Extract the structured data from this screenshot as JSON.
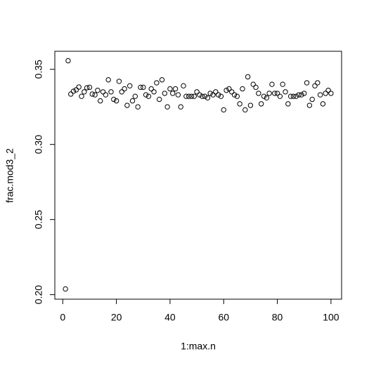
{
  "chart_data": {
    "type": "scatter",
    "x_label": "1:max.n",
    "y_label": "frac.mod3_2",
    "x": [
      1,
      2,
      3,
      4,
      5,
      6,
      7,
      8,
      9,
      10,
      11,
      12,
      13,
      14,
      15,
      16,
      17,
      18,
      19,
      20,
      21,
      22,
      23,
      24,
      25,
      26,
      27,
      28,
      29,
      30,
      31,
      32,
      33,
      34,
      35,
      36,
      37,
      38,
      39,
      40,
      41,
      42,
      43,
      44,
      45,
      46,
      47,
      48,
      49,
      50,
      51,
      52,
      53,
      54,
      55,
      56,
      57,
      58,
      59,
      60,
      61,
      62,
      63,
      64,
      65,
      66,
      67,
      68,
      69,
      70,
      71,
      72,
      73,
      74,
      75,
      76,
      77,
      78,
      79,
      80,
      81,
      82,
      83,
      84,
      85,
      86,
      87,
      88,
      89,
      90,
      91,
      92,
      93,
      94,
      95,
      96,
      97,
      98,
      99,
      100
    ],
    "series": [
      {
        "color": "#000000",
        "values": [
          0.2038,
          0.3557,
          0.3335,
          0.3354,
          0.3363,
          0.3382,
          0.332,
          0.335,
          0.3377,
          0.338,
          0.3335,
          0.333,
          0.336,
          0.329,
          0.335,
          0.333,
          0.343,
          0.335,
          0.33,
          0.329,
          0.342,
          0.335,
          0.337,
          0.326,
          0.339,
          0.329,
          0.332,
          0.325,
          0.338,
          0.338,
          0.333,
          0.332,
          0.337,
          0.335,
          0.341,
          0.33,
          0.343,
          0.334,
          0.325,
          0.337,
          0.334,
          0.337,
          0.333,
          0.325,
          0.339,
          0.332,
          0.332,
          0.332,
          0.332,
          0.335,
          0.333,
          0.332,
          0.332,
          0.331,
          0.334,
          0.333,
          0.335,
          0.333,
          0.332,
          0.323,
          0.336,
          0.337,
          0.335,
          0.333,
          0.332,
          0.327,
          0.337,
          0.323,
          0.345,
          0.326,
          0.34,
          0.338,
          0.334,
          0.327,
          0.332,
          0.331,
          0.334,
          0.34,
          0.334,
          0.334,
          0.332,
          0.34,
          0.335,
          0.327,
          0.332,
          0.332,
          0.332,
          0.333,
          0.333,
          0.334,
          0.341,
          0.326,
          0.33,
          0.339,
          0.341,
          0.333,
          0.327,
          0.334,
          0.336,
          0.334
        ]
      }
    ],
    "xlim": [
      -2.96,
      103.96
    ],
    "ylim": [
      0.197,
      0.362
    ],
    "xticks": [
      0,
      20,
      40,
      60,
      80,
      100
    ],
    "yticks": [
      {
        "value": 0.2,
        "label": "0.20"
      },
      0.25,
      {
        "value": 0.3,
        "label": "0.30"
      },
      0.35
    ],
    "grid": false,
    "marker": "open-circle"
  }
}
